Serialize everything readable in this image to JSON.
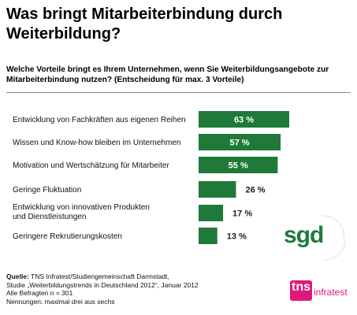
{
  "header": {
    "title": "Was bringt Mitarbeiterbindung durch Weiterbildung?",
    "subtitle": "Welche Vorteile bringt es Ihrem Unternehmen, wenn Sie Weiterbildungsangebote zur Mitarbeiterbindung nutzen? (Entscheidung für max. 3 Vorteile)"
  },
  "chart_data": {
    "type": "bar",
    "orientation": "horizontal",
    "categories": [
      "Entwicklung von Fachkräften aus eigenen Reihen",
      "Wissen und Know-how bleiben im Unternehmen",
      "Motivation und Wertschätzung für Mitarbeiter",
      "Geringe Fluktuation",
      "Entwicklung von innovativen Produkten und Dienstleistungen",
      "Geringere Rekrutierungskosten"
    ],
    "category_lines": [
      [
        "Entwicklung von Fachkräften aus eigenen Reihen"
      ],
      [
        "Wissen und Know-how bleiben im Unternehmen"
      ],
      [
        "Motivation und Wertschätzung für Mitarbeiter"
      ],
      [
        "Geringe Fluktuation"
      ],
      [
        "Entwicklung von innovativen Produkten",
        "und Dienstleistungen"
      ],
      [
        "Geringere Rekrutierungskosten"
      ]
    ],
    "values": [
      63,
      57,
      55,
      26,
      17,
      13
    ],
    "labels": [
      "63 %",
      "57 %",
      "55 %",
      "26 %",
      "17 %",
      "13 %"
    ],
    "label_position": [
      "inside",
      "inside",
      "inside",
      "outside",
      "outside",
      "outside"
    ],
    "unit": "%",
    "xlim": [
      0,
      63
    ],
    "bar_color": "#1f7a3a",
    "grid": false,
    "legend": "none"
  },
  "source": {
    "label": "Quelle:",
    "line1": " TNS Infratest/Studiengemeinschaft Darmstadt,",
    "line2": "Studie „Weiterbildungstrends in Deutschland 2012“, Januar 2012",
    "line3": "Alle Befragten n = 301",
    "line4": "Nennungen: maximal drei aus sechs"
  },
  "logos": {
    "sgd_text": "sgd",
    "sgd_ring_text": "Studiengemeinschaft · Darmstadt",
    "tns_text": "tns",
    "infratest_text": "infratest",
    "tns_color": "#e0187a",
    "sgd_color": "#1f7a3a"
  }
}
